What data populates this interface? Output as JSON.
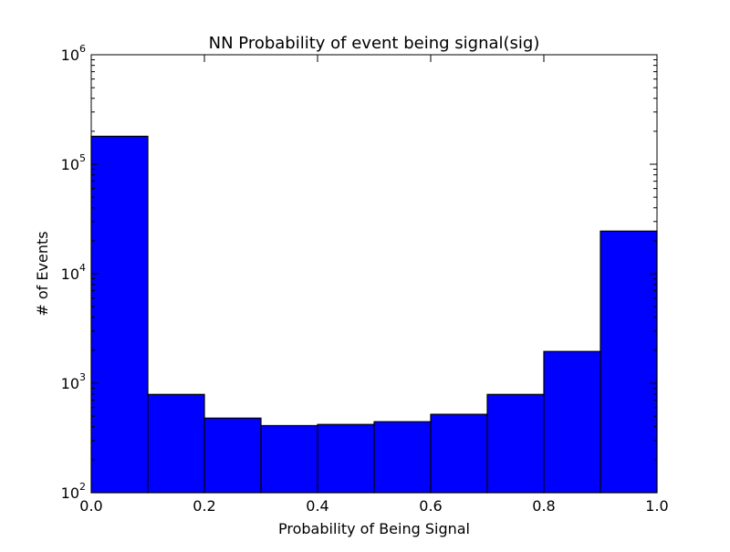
{
  "chart_data": {
    "type": "bar",
    "title": "NN Probability of event being signal(sig)",
    "xlabel": "Probability of Being Signal",
    "ylabel": "# of Events",
    "xlim": [
      0.0,
      1.0
    ],
    "ylim": [
      100,
      1000000
    ],
    "yscale": "log",
    "bin_edges": [
      0.0,
      0.1,
      0.2,
      0.3,
      0.4,
      0.5,
      0.6,
      0.7,
      0.8,
      0.9,
      1.0
    ],
    "values": [
      180000,
      790,
      480,
      410,
      420,
      445,
      520,
      790,
      1950,
      24500
    ],
    "bar_color": "#0000ff",
    "edge_color": "#000000",
    "xticks": [
      {
        "value": 0.0,
        "label": "0.0"
      },
      {
        "value": 0.2,
        "label": "0.2"
      },
      {
        "value": 0.4,
        "label": "0.4"
      },
      {
        "value": 0.6,
        "label": "0.6"
      },
      {
        "value": 0.8,
        "label": "0.8"
      },
      {
        "value": 1.0,
        "label": "1.0"
      }
    ],
    "yticks": [
      {
        "value": 100,
        "base": "10",
        "exp": "2"
      },
      {
        "value": 1000,
        "base": "10",
        "exp": "3"
      },
      {
        "value": 10000,
        "base": "10",
        "exp": "4"
      },
      {
        "value": 100000,
        "base": "10",
        "exp": "5"
      },
      {
        "value": 1000000,
        "base": "10",
        "exp": "6"
      }
    ],
    "grid": false,
    "legend": "none"
  }
}
